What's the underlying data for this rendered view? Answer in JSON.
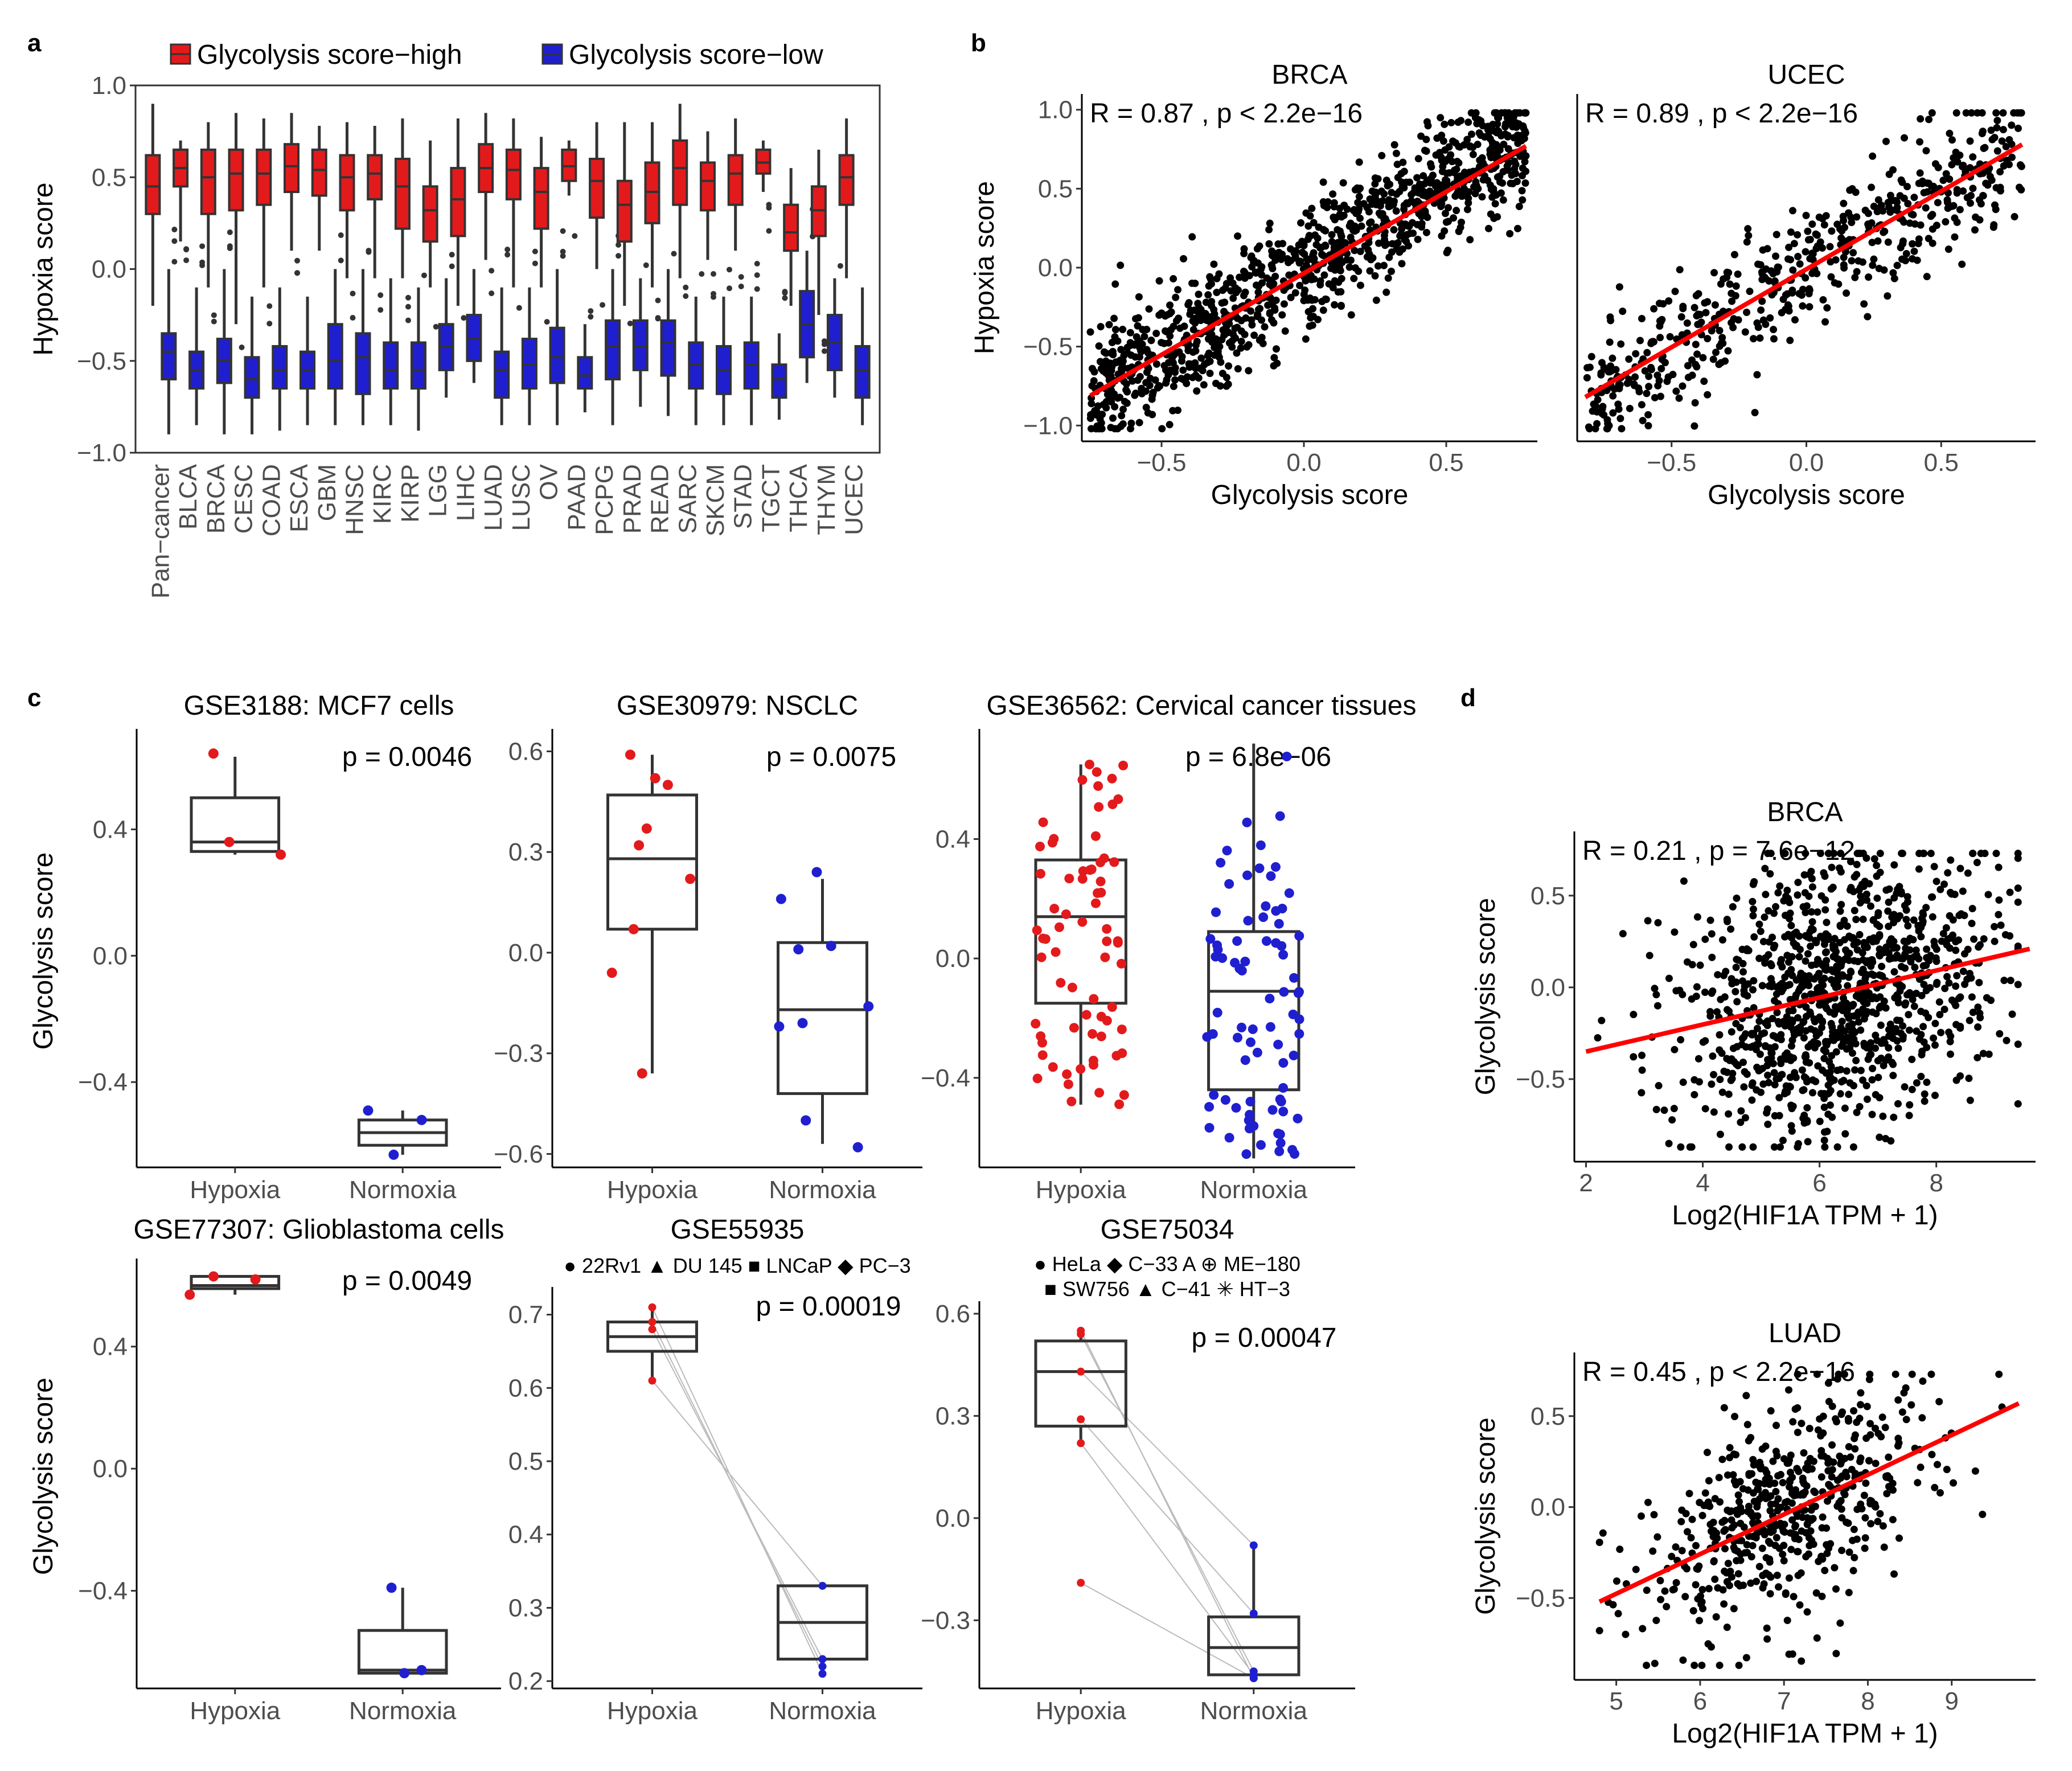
{
  "panels": {
    "a": "a",
    "b": "b",
    "c": "c",
    "d": "d"
  },
  "chart_data": [
    {
      "id": "a",
      "type": "boxplot",
      "title": "",
      "ylabel": "Hypoxia score",
      "xlabel": "",
      "ylim": [
        -1.0,
        1.0
      ],
      "yticks": [
        -1.0,
        -0.5,
        0.0,
        0.5,
        1.0
      ],
      "ytick_labels": [
        "−1.0",
        "−0.5",
        "0.0",
        "0.5",
        "1.0"
      ],
      "legend": [
        {
          "label": "Glycolysis score−high",
          "color": "#e31a1c"
        },
        {
          "label": "Glycolysis score−low",
          "color": "#1f1fd0"
        }
      ],
      "categories": [
        "Pan−cancer",
        "BLCA",
        "BRCA",
        "CESC",
        "COAD",
        "ESCA",
        "GBM",
        "HNSC",
        "KIRC",
        "KIRP",
        "LGG",
        "LIHC",
        "LUAD",
        "LUSC",
        "OV",
        "PAAD",
        "PCPG",
        "PRAD",
        "READ",
        "SARC",
        "SKCM",
        "STAD",
        "TGCT",
        "THCA",
        "THYM",
        "UCEC"
      ],
      "series": [
        {
          "name": "Glycolysis score−high",
          "color": "#e31a1c",
          "median": [
            0.45,
            0.55,
            0.5,
            0.52,
            0.52,
            0.56,
            0.54,
            0.5,
            0.52,
            0.45,
            0.32,
            0.38,
            0.55,
            0.54,
            0.42,
            0.56,
            0.48,
            0.35,
            0.42,
            0.55,
            0.48,
            0.52,
            0.58,
            0.2,
            0.32,
            0.5
          ],
          "q1": [
            0.3,
            0.45,
            0.3,
            0.32,
            0.35,
            0.42,
            0.4,
            0.32,
            0.38,
            0.22,
            0.15,
            0.18,
            0.42,
            0.38,
            0.22,
            0.48,
            0.28,
            0.15,
            0.25,
            0.35,
            0.32,
            0.35,
            0.52,
            0.1,
            0.18,
            0.35
          ],
          "q3": [
            0.62,
            0.65,
            0.65,
            0.65,
            0.65,
            0.68,
            0.65,
            0.62,
            0.62,
            0.6,
            0.45,
            0.55,
            0.68,
            0.65,
            0.55,
            0.65,
            0.6,
            0.48,
            0.58,
            0.7,
            0.58,
            0.62,
            0.65,
            0.35,
            0.45,
            0.62
          ],
          "lo": [
            -0.2,
            0.15,
            -0.1,
            -0.3,
            -0.1,
            0.1,
            0.1,
            -0.05,
            -0.05,
            -0.05,
            -0.1,
            -0.2,
            0.05,
            -0.1,
            -0.1,
            0.4,
            0.0,
            -0.2,
            -0.1,
            -0.05,
            0.05,
            0.1,
            0.42,
            -0.2,
            -0.25,
            -0.05
          ],
          "hi": [
            0.9,
            0.7,
            0.8,
            0.85,
            0.82,
            0.85,
            0.78,
            0.8,
            0.78,
            0.82,
            0.7,
            0.82,
            0.85,
            0.82,
            0.72,
            0.7,
            0.8,
            0.8,
            0.8,
            0.9,
            0.75,
            0.82,
            0.7,
            0.55,
            0.65,
            0.82
          ]
        },
        {
          "name": "Glycolysis score−low",
          "color": "#1f1fd0",
          "median": [
            -0.45,
            -0.55,
            -0.5,
            -0.6,
            -0.55,
            -0.55,
            -0.5,
            -0.48,
            -0.55,
            -0.55,
            -0.42,
            -0.38,
            -0.55,
            -0.52,
            -0.48,
            -0.58,
            -0.42,
            -0.42,
            -0.4,
            -0.52,
            -0.55,
            -0.52,
            -0.6,
            -0.3,
            -0.4,
            -0.55
          ],
          "q1": [
            -0.6,
            -0.65,
            -0.62,
            -0.7,
            -0.65,
            -0.65,
            -0.65,
            -0.68,
            -0.65,
            -0.65,
            -0.55,
            -0.5,
            -0.7,
            -0.65,
            -0.62,
            -0.65,
            -0.6,
            -0.55,
            -0.58,
            -0.65,
            -0.68,
            -0.65,
            -0.7,
            -0.48,
            -0.55,
            -0.7
          ],
          "q3": [
            -0.35,
            -0.45,
            -0.38,
            -0.48,
            -0.42,
            -0.45,
            -0.3,
            -0.35,
            -0.4,
            -0.4,
            -0.3,
            -0.25,
            -0.45,
            -0.38,
            -0.32,
            -0.48,
            -0.28,
            -0.28,
            -0.28,
            -0.4,
            -0.42,
            -0.4,
            -0.52,
            -0.12,
            -0.25,
            -0.42
          ],
          "lo": [
            -0.9,
            -0.85,
            -0.9,
            -0.9,
            -0.88,
            -0.85,
            -0.85,
            -0.85,
            -0.85,
            -0.88,
            -0.7,
            -0.62,
            -0.85,
            -0.85,
            -0.85,
            -0.78,
            -0.85,
            -0.75,
            -0.8,
            -0.85,
            -0.85,
            -0.85,
            -0.82,
            -0.62,
            -0.7,
            -0.85
          ],
          "hi": [
            0.0,
            -0.1,
            0.0,
            -0.15,
            -0.1,
            -0.15,
            0.0,
            0.0,
            -0.05,
            -0.1,
            -0.05,
            0.0,
            -0.1,
            -0.1,
            0.0,
            -0.3,
            0.0,
            -0.05,
            0.0,
            -0.15,
            -0.15,
            -0.15,
            -0.35,
            0.1,
            -0.05,
            -0.1
          ]
        }
      ]
    },
    {
      "id": "b-brca",
      "type": "scatter",
      "title": "BRCA",
      "annotation": "R = 0.87 , p < 2.2e−16",
      "xlabel": "Glycolysis score",
      "ylabel": "Hypoxia score",
      "xlim": [
        -0.78,
        0.82
      ],
      "ylim": [
        -1.1,
        1.1
      ],
      "xticks": [
        -0.5,
        0.0,
        0.5
      ],
      "xtick_labels": [
        "−0.5",
        "0.0",
        "0.5"
      ],
      "yticks": [
        -1.0,
        -0.5,
        0.0,
        0.5,
        1.0
      ],
      "ytick_labels": [
        "−1.0",
        "−0.5",
        "0.0",
        "0.5",
        "1.0"
      ],
      "n_points": 1100,
      "x_range": [
        -0.75,
        0.78
      ],
      "slope": 1.08,
      "intercept": 0.0,
      "noise": 0.2,
      "fit_line": {
        "x": [
          -0.75,
          0.78
        ],
        "y": [
          -0.81,
          0.77
        ]
      }
    },
    {
      "id": "b-ucec",
      "type": "scatter",
      "title": "UCEC",
      "annotation": "R = 0.89 , p < 2.2e−16",
      "xlabel": "Glycolysis score",
      "ylabel": "",
      "xlim": [
        -0.85,
        0.85
      ],
      "ylim": [
        -1.1,
        1.1
      ],
      "xticks": [
        -0.5,
        0.0,
        0.5
      ],
      "xtick_labels": [
        "−0.5",
        "0.0",
        "0.5"
      ],
      "yticks": [],
      "ytick_labels": [],
      "n_points": 550,
      "x_range": [
        -0.82,
        0.8
      ],
      "slope": 1.0,
      "intercept": 0.0,
      "noise": 0.2,
      "fit_line": {
        "x": [
          -0.82,
          0.8
        ],
        "y": [
          -0.82,
          0.78
        ]
      }
    },
    {
      "id": "c-gse3188",
      "type": "box_points",
      "title": "GSE3188: MCF7 cells",
      "annotation": "p = 0.0046",
      "categories": [
        "Hypoxia",
        "Normoxia"
      ],
      "ylabel": "Glycolysis score",
      "ylim": [
        -0.67,
        0.7
      ],
      "yticks": [
        -0.4,
        0.0,
        0.4
      ],
      "ytick_labels": [
        "−0.4",
        "0.0",
        "0.4"
      ],
      "boxes": [
        {
          "q1": 0.33,
          "median": 0.36,
          "q3": 0.5,
          "lo": 0.32,
          "hi": 0.63
        },
        {
          "q1": -0.6,
          "median": -0.56,
          "q3": -0.52,
          "lo": -0.63,
          "hi": -0.49
        }
      ],
      "points": [
        [
          0.64,
          0.36,
          0.32
        ],
        [
          -0.63,
          -0.52,
          -0.49
        ]
      ],
      "point_colors": [
        "#e31a1c",
        "#1f1fd0"
      ]
    },
    {
      "id": "c-gse30979",
      "type": "box_points",
      "title": "GSE30979: NSCLC",
      "annotation": "p = 0.0075",
      "categories": [
        "Hypoxia",
        "Normoxia"
      ],
      "ylabel": "",
      "ylim": [
        -0.64,
        0.65
      ],
      "yticks": [
        -0.6,
        -0.3,
        0.0,
        0.3,
        0.6
      ],
      "ytick_labels": [
        "−0.6",
        "−0.3",
        "0.0",
        "0.3",
        "0.6"
      ],
      "boxes": [
        {
          "q1": 0.07,
          "median": 0.28,
          "q3": 0.47,
          "lo": -0.36,
          "hi": 0.59
        },
        {
          "q1": -0.42,
          "median": -0.17,
          "q3": 0.03,
          "lo": -0.57,
          "hi": 0.22
        }
      ],
      "points": [
        [
          0.59,
          0.52,
          0.5,
          0.37,
          0.32,
          0.22,
          0.07,
          -0.06,
          -0.36
        ],
        [
          0.24,
          0.16,
          0.02,
          0.01,
          -0.16,
          -0.21,
          -0.22,
          -0.5,
          -0.58
        ]
      ],
      "point_colors": [
        "#e31a1c",
        "#1f1fd0"
      ]
    },
    {
      "id": "c-gse36562",
      "type": "box_points",
      "title": "GSE36562: Cervical cancer tissues",
      "annotation": "p = 6.8e−06",
      "categories": [
        "Hypoxia",
        "Normoxia"
      ],
      "ylabel": "",
      "ylim": [
        -0.7,
        0.75
      ],
      "yticks": [
        -0.4,
        0.0,
        0.4
      ],
      "ytick_labels": [
        "−0.4",
        "0.0",
        "0.4"
      ],
      "boxes": [
        {
          "q1": -0.15,
          "median": 0.14,
          "q3": 0.33,
          "lo": -0.49,
          "hi": 0.65
        },
        {
          "q1": -0.44,
          "median": -0.11,
          "q3": 0.09,
          "lo": -0.67,
          "hi": 0.72
        }
      ],
      "n_points": [
        70,
        80
      ],
      "point_colors": [
        "#e31a1c",
        "#1f1fd0"
      ]
    },
    {
      "id": "c-gse77307",
      "type": "box_points",
      "title": "GSE77307: Glioblastoma cells",
      "annotation": "p = 0.0049",
      "categories": [
        "Hypoxia",
        "Normoxia"
      ],
      "ylabel": "Glycolysis score",
      "ylim": [
        -0.72,
        0.67
      ],
      "yticks": [
        -0.4,
        0.0,
        0.4
      ],
      "ytick_labels": [
        "−0.4",
        "0.0",
        "0.4"
      ],
      "boxes": [
        {
          "q1": 0.59,
          "median": 0.6,
          "q3": 0.63,
          "lo": 0.57,
          "hi": 0.63
        },
        {
          "q1": -0.67,
          "median": -0.66,
          "q3": -0.53,
          "lo": -0.67,
          "hi": -0.39
        }
      ],
      "points": [
        [
          0.63,
          0.62,
          0.57
        ],
        [
          -0.67,
          -0.66,
          -0.39
        ]
      ],
      "point_colors": [
        "#e31a1c",
        "#1f1fd0"
      ]
    },
    {
      "id": "c-gse55935",
      "type": "paired_box",
      "title": "GSE55935",
      "annotation": "p = 0.00019",
      "legend": [
        "● 22Rv1",
        "▲ DU 145",
        "■ LNCaP",
        "◆ PC−3"
      ],
      "categories": [
        "Hypoxia",
        "Normoxia"
      ],
      "ylabel": "",
      "ylim": [
        0.19,
        0.73
      ],
      "yticks": [
        0.2,
        0.3,
        0.4,
        0.5,
        0.6,
        0.7
      ],
      "ytick_labels": [
        "0.2",
        "0.3",
        "0.4",
        "0.5",
        "0.6",
        "0.7"
      ],
      "boxes": [
        {
          "q1": 0.65,
          "median": 0.67,
          "q3": 0.69,
          "lo": 0.61,
          "hi": 0.71
        },
        {
          "q1": 0.23,
          "median": 0.28,
          "q3": 0.33,
          "lo": 0.21,
          "hi": 0.33
        }
      ],
      "pairs": [
        [
          0.71,
          0.21
        ],
        [
          0.69,
          0.22
        ],
        [
          0.68,
          0.23
        ],
        [
          0.61,
          0.33
        ]
      ],
      "point_colors": [
        "#e31a1c",
        "#1f1fd0"
      ]
    },
    {
      "id": "c-gse75034",
      "type": "paired_box",
      "title": "GSE75034",
      "annotation": "p = 0.00047",
      "legend": [
        "● HeLa",
        "◆ C−33 A",
        "⊕ ME−180",
        "■ SW756",
        "▲ C−41",
        "✳ HT−3"
      ],
      "categories": [
        "Hypoxia",
        "Normoxia"
      ],
      "ylabel": "",
      "ylim": [
        -0.5,
        0.62
      ],
      "yticks": [
        -0.3,
        0.0,
        0.3,
        0.6
      ],
      "ytick_labels": [
        "−0.3",
        "0.0",
        "0.3",
        "0.6"
      ],
      "boxes": [
        {
          "q1": 0.27,
          "median": 0.43,
          "q3": 0.52,
          "lo": 0.22,
          "hi": 0.55
        },
        {
          "q1": -0.46,
          "median": -0.38,
          "q3": -0.29,
          "lo": -0.47,
          "hi": -0.08
        }
      ],
      "pairs": [
        [
          0.55,
          -0.47
        ],
        [
          0.54,
          -0.45
        ],
        [
          0.43,
          -0.08
        ],
        [
          0.29,
          -0.28
        ],
        [
          0.22,
          -0.46
        ],
        [
          -0.19,
          -0.47
        ]
      ],
      "point_colors": [
        "#e31a1c",
        "#1f1fd0"
      ]
    },
    {
      "id": "d-brca",
      "type": "scatter",
      "title": "BRCA",
      "annotation": "R = 0.21 , p = 7.6e−12",
      "xlabel": "Log2(HIF1A TPM + 1)",
      "ylabel": "Glycolysis score",
      "xlim": [
        1.8,
        9.7
      ],
      "ylim": [
        -0.95,
        0.85
      ],
      "xticks": [
        2,
        4,
        6,
        8
      ],
      "xtick_labels": [
        "2",
        "4",
        "6",
        "8"
      ],
      "yticks": [
        -0.5,
        0.0,
        0.5
      ],
      "ytick_labels": [
        "−0.5",
        "0.0",
        "0.5"
      ],
      "n_points": 1100,
      "x_range": [
        2.2,
        9.4
      ],
      "x_center": 6.3,
      "x_sd": 1.3,
      "slope": 0.075,
      "intercept": -0.5,
      "noise": 0.37,
      "fit_line": {
        "x": [
          2.0,
          9.6
        ],
        "y": [
          -0.35,
          0.21
        ]
      }
    },
    {
      "id": "d-luad",
      "type": "scatter",
      "title": "LUAD",
      "annotation": "R = 0.45 , p < 2.2e−16",
      "xlabel": "Log2(HIF1A TPM + 1)",
      "ylabel": "Glycolysis score",
      "xlim": [
        4.5,
        10.0
      ],
      "ylim": [
        -0.95,
        0.85
      ],
      "xticks": [
        5,
        6,
        7,
        8,
        9
      ],
      "xtick_labels": [
        "5",
        "6",
        "7",
        "8",
        "9"
      ],
      "yticks": [
        -0.5,
        0.0,
        0.5
      ],
      "ytick_labels": [
        "−0.5",
        "0.0",
        "0.5"
      ],
      "n_points": 550,
      "x_range": [
        4.8,
        9.6
      ],
      "x_center": 7.1,
      "x_sd": 0.9,
      "slope": 0.22,
      "intercept": -1.58,
      "noise": 0.3,
      "fit_line": {
        "x": [
          4.8,
          9.8
        ],
        "y": [
          -0.52,
          0.57
        ]
      }
    }
  ]
}
